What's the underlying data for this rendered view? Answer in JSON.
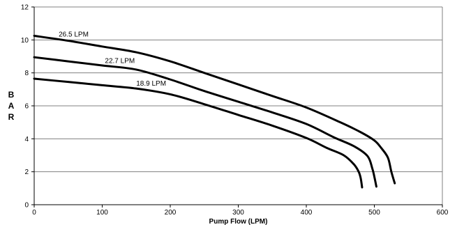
{
  "chart_data": {
    "type": "line",
    "title": "",
    "xlabel": "Pump Flow (LPM)",
    "ylabel": "BAR",
    "ylabel_letters": [
      "B",
      "A",
      "R"
    ],
    "xlim": [
      0,
      600
    ],
    "ylim": [
      0,
      12
    ],
    "xticks": [
      "0",
      "100",
      "200",
      "300",
      "400",
      "500",
      "600"
    ],
    "yticks": [
      "0",
      "2",
      "4",
      "6",
      "8",
      "10",
      "12"
    ],
    "grid": "horizontal",
    "legend": "none",
    "series": [
      {
        "name": "26.5 LPM",
        "color": "#000000",
        "x": [
          0,
          50,
          100,
          150,
          200,
          250,
          300,
          350,
          400,
          450,
          480,
          500,
          510,
          520,
          525,
          530
        ],
        "y": [
          10.25,
          9.95,
          9.6,
          9.25,
          8.7,
          8.0,
          7.3,
          6.6,
          5.9,
          5.0,
          4.4,
          3.9,
          3.45,
          2.85,
          2.0,
          1.3
        ]
      },
      {
        "name": "22.7 LPM",
        "color": "#000000",
        "x": [
          0,
          50,
          100,
          150,
          200,
          250,
          300,
          350,
          400,
          440,
          470,
          490,
          497,
          500,
          503
        ],
        "y": [
          8.95,
          8.7,
          8.45,
          8.2,
          7.6,
          6.9,
          6.25,
          5.6,
          4.9,
          4.1,
          3.55,
          2.95,
          2.2,
          1.7,
          1.1
        ]
      },
      {
        "name": "18.9 LPM",
        "color": "#000000",
        "x": [
          0,
          50,
          100,
          150,
          200,
          250,
          300,
          350,
          400,
          430,
          455,
          470,
          477,
          480,
          482
        ],
        "y": [
          7.65,
          7.45,
          7.25,
          7.05,
          6.7,
          6.1,
          5.45,
          4.8,
          4.05,
          3.45,
          3.0,
          2.45,
          2.0,
          1.6,
          1.05
        ]
      }
    ]
  }
}
